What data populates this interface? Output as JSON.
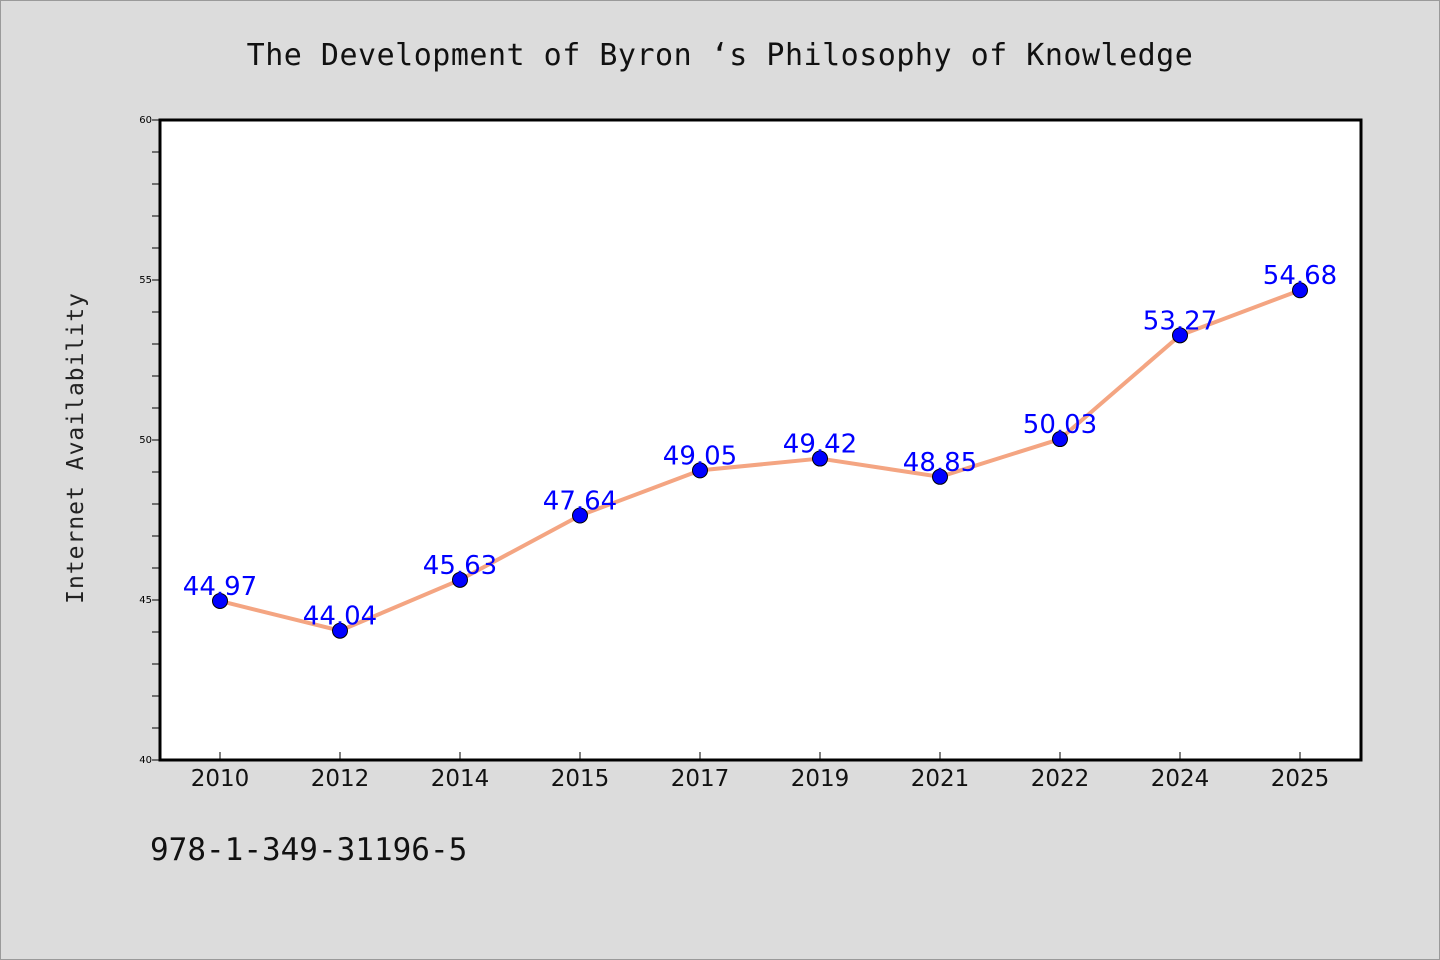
{
  "chart_data": {
    "type": "line",
    "title": "The Development of Byron ‘s Philosophy of Knowledge",
    "xlabel": "",
    "ylabel": "Internet Availability",
    "categories": [
      "2010",
      "2012",
      "2014",
      "2015",
      "2017",
      "2019",
      "2021",
      "2022",
      "2024",
      "2025"
    ],
    "series": [
      {
        "values": [
          44.97,
          44.04,
          45.63,
          47.64,
          49.05,
          49.42,
          48.85,
          50.03,
          53.27,
          54.68
        ],
        "labels": [
          "44.97",
          "44.04",
          "45.63",
          "47.64",
          "49.05",
          "49.42",
          "48.85",
          "50.03",
          "53.27",
          "54.68"
        ],
        "line_color": "#f4a582",
        "marker_color": "#0000ff",
        "label_color": "#0000ff"
      }
    ],
    "ylim": [
      40,
      60
    ],
    "yticks": [
      "40",
      "45",
      "50",
      "55",
      "60"
    ],
    "grid": false,
    "legend": "none"
  },
  "footer": {
    "isbn": "978-1-349-31196-5"
  }
}
